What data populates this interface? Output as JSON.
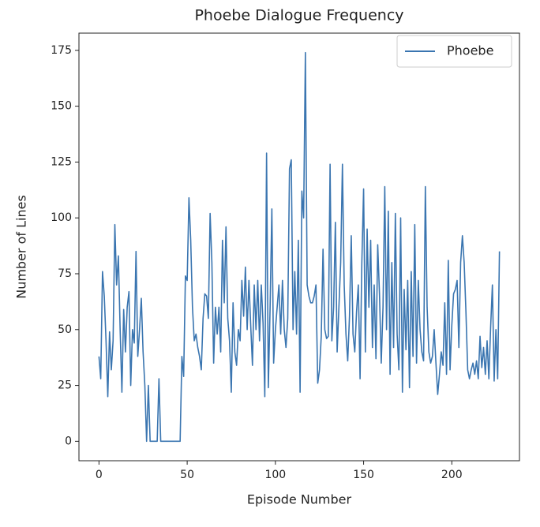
{
  "chart_data": {
    "type": "line",
    "title": "Phoebe Dialogue Frequency",
    "x_label": "Episode Number",
    "y_label": "Number of Lines",
    "x": [
      0,
      1,
      2,
      3,
      4,
      5,
      6,
      7,
      8,
      9,
      10,
      11,
      12,
      13,
      14,
      15,
      16,
      17,
      18,
      19,
      20,
      21,
      22,
      23,
      24,
      25,
      26,
      27,
      28,
      29,
      30,
      31,
      32,
      33,
      34,
      35,
      36,
      37,
      38,
      39,
      40,
      41,
      42,
      43,
      44,
      45,
      46,
      47,
      48,
      49,
      50,
      51,
      52,
      53,
      54,
      55,
      56,
      57,
      58,
      59,
      60,
      61,
      62,
      63,
      64,
      65,
      66,
      67,
      68,
      69,
      70,
      71,
      72,
      73,
      74,
      75,
      76,
      77,
      78,
      79,
      80,
      81,
      82,
      83,
      84,
      85,
      86,
      87,
      88,
      89,
      90,
      91,
      92,
      93,
      94,
      95,
      96,
      97,
      98,
      99,
      100,
      101,
      102,
      103,
      104,
      105,
      106,
      107,
      108,
      109,
      110,
      111,
      112,
      113,
      114,
      115,
      116,
      117,
      118,
      119,
      120,
      121,
      122,
      123,
      124,
      125,
      126,
      127,
      128,
      129,
      130,
      131,
      132,
      133,
      134,
      135,
      136,
      137,
      138,
      139,
      140,
      141,
      142,
      143,
      144,
      145,
      146,
      147,
      148,
      149,
      150,
      151,
      152,
      153,
      154,
      155,
      156,
      157,
      158,
      159,
      160,
      161,
      162,
      163,
      164,
      165,
      166,
      167,
      168,
      169,
      170,
      171,
      172,
      173,
      174,
      175,
      176,
      177,
      178,
      179,
      180,
      181,
      182,
      183,
      184,
      185,
      186,
      187,
      188,
      189,
      190,
      191,
      192,
      193,
      194,
      195,
      196,
      197,
      198,
      199,
      200,
      201,
      202,
      203,
      204,
      205,
      206,
      207,
      208,
      209,
      210,
      211,
      212,
      213,
      214,
      215,
      216,
      217,
      218,
      219,
      220,
      221,
      222,
      223,
      224,
      225,
      226,
      227
    ],
    "series": [
      {
        "name": "Phoebe",
        "color": "#3a75b0",
        "values": [
          38,
          28,
          76,
          65,
          45,
          20,
          49,
          32,
          45,
          97,
          70,
          83,
          50,
          22,
          59,
          40,
          60,
          67,
          25,
          50,
          44,
          85,
          38,
          50,
          64,
          40,
          25,
          0,
          25,
          0,
          0,
          0,
          0,
          0,
          28,
          0,
          0,
          0,
          0,
          0,
          0,
          0,
          0,
          0,
          0,
          0,
          0,
          38,
          29,
          74,
          72,
          109,
          90,
          60,
          45,
          48,
          42,
          38,
          32,
          55,
          66,
          65,
          55,
          102,
          80,
          35,
          60,
          48,
          60,
          40,
          90,
          62,
          96,
          55,
          45,
          22,
          62,
          40,
          34,
          50,
          45,
          72,
          56,
          78,
          50,
          72,
          52,
          34,
          70,
          50,
          72,
          45,
          70,
          53,
          20,
          129,
          24,
          60,
          104,
          35,
          50,
          60,
          70,
          48,
          72,
          50,
          42,
          55,
          122,
          126,
          50,
          76,
          48,
          90,
          22,
          112,
          100,
          174,
          70,
          65,
          62,
          62,
          65,
          70,
          26,
          32,
          47,
          86,
          50,
          46,
          47,
          124,
          45,
          60,
          98,
          40,
          60,
          80,
          124,
          70,
          48,
          36,
          56,
          92,
          48,
          40,
          58,
          70,
          28,
          80,
          113,
          40,
          95,
          60,
          90,
          42,
          70,
          37,
          88,
          66,
          35,
          60,
          114,
          50,
          103,
          30,
          80,
          42,
          102,
          48,
          32,
          100,
          22,
          68,
          41,
          72,
          24,
          76,
          38,
          97,
          35,
          72,
          50,
          40,
          36,
          114,
          60,
          40,
          35,
          38,
          50,
          35,
          21,
          30,
          40,
          34,
          62,
          30,
          81,
          32,
          52,
          66,
          68,
          72,
          42,
          80,
          92,
          80,
          58,
          32,
          28,
          32,
          35,
          30,
          36,
          28,
          47,
          33,
          42,
          30,
          45,
          28,
          51,
          70,
          27,
          50,
          28,
          85
        ]
      }
    ],
    "xlim": [
      -11.35,
      238.35
    ],
    "xticks": [
      0,
      50,
      100,
      150,
      200
    ],
    "ylim": [
      -8.7,
      182.7
    ],
    "yticks": [
      0,
      25,
      50,
      75,
      100,
      125,
      150,
      175
    ],
    "legend": "upper right"
  }
}
